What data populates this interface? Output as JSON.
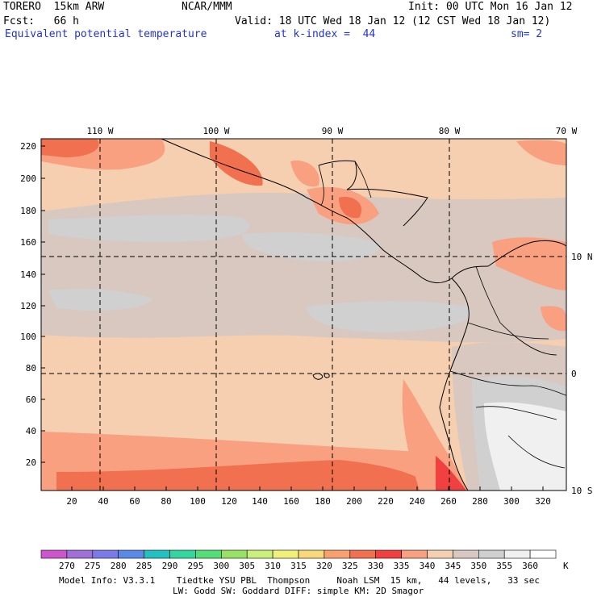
{
  "header": {
    "model": "TORERO  15km ARW",
    "org": "NCAR/MMM",
    "init": "Init: 00 UTC Mon 16 Jan 12",
    "fcst": "Fcst:   66 h",
    "valid": "Valid: 18 UTC Wed 18 Jan 12 (12 CST Wed 18 Jan 12)",
    "field": "Equivalent potential temperature",
    "level": "at k-index =  44",
    "smooth": "sm= 2"
  },
  "map": {
    "lon_labels": [
      "110 W",
      "100 W",
      "90 W",
      "80 W",
      "70 W"
    ],
    "lat_labels": [
      "10 N",
      "0",
      "10 S"
    ],
    "y_ticks": [
      "220",
      "200",
      "180",
      "160",
      "140",
      "120",
      "100",
      "80",
      "60",
      "40",
      "20"
    ],
    "x_ticks": [
      "20",
      "40",
      "60",
      "80",
      "100",
      "120",
      "140",
      "160",
      "180",
      "200",
      "220",
      "240",
      "260",
      "280",
      "300",
      "320"
    ]
  },
  "colorbar": {
    "labels": [
      "270",
      "275",
      "280",
      "285",
      "290",
      "295",
      "300",
      "305",
      "310",
      "315",
      "320",
      "325",
      "330",
      "335",
      "340",
      "345",
      "350",
      "355",
      "360"
    ],
    "unit": "K",
    "colors": [
      "#cc55cc",
      "#a070d8",
      "#7a7ae8",
      "#5a8ae8",
      "#22c0c0",
      "#33d6a0",
      "#55dd77",
      "#99e066",
      "#c8f07a",
      "#f0f07a",
      "#f8d878",
      "#f8a070",
      "#f07050",
      "#f04040",
      "#f8a080",
      "#f5cfb0",
      "#d8c8c0",
      "#d0d0d0",
      "#f0f0f0",
      "#ffffff"
    ]
  },
  "footer": {
    "line1": "Model Info: V3.3.1    Tiedtke YSU PBL  Thompson     Noah LSM  15 km,   44 levels,   33 sec",
    "line2": "LW: Godd SW: Goddard DIFF: simple KM: 2D Smagor"
  }
}
